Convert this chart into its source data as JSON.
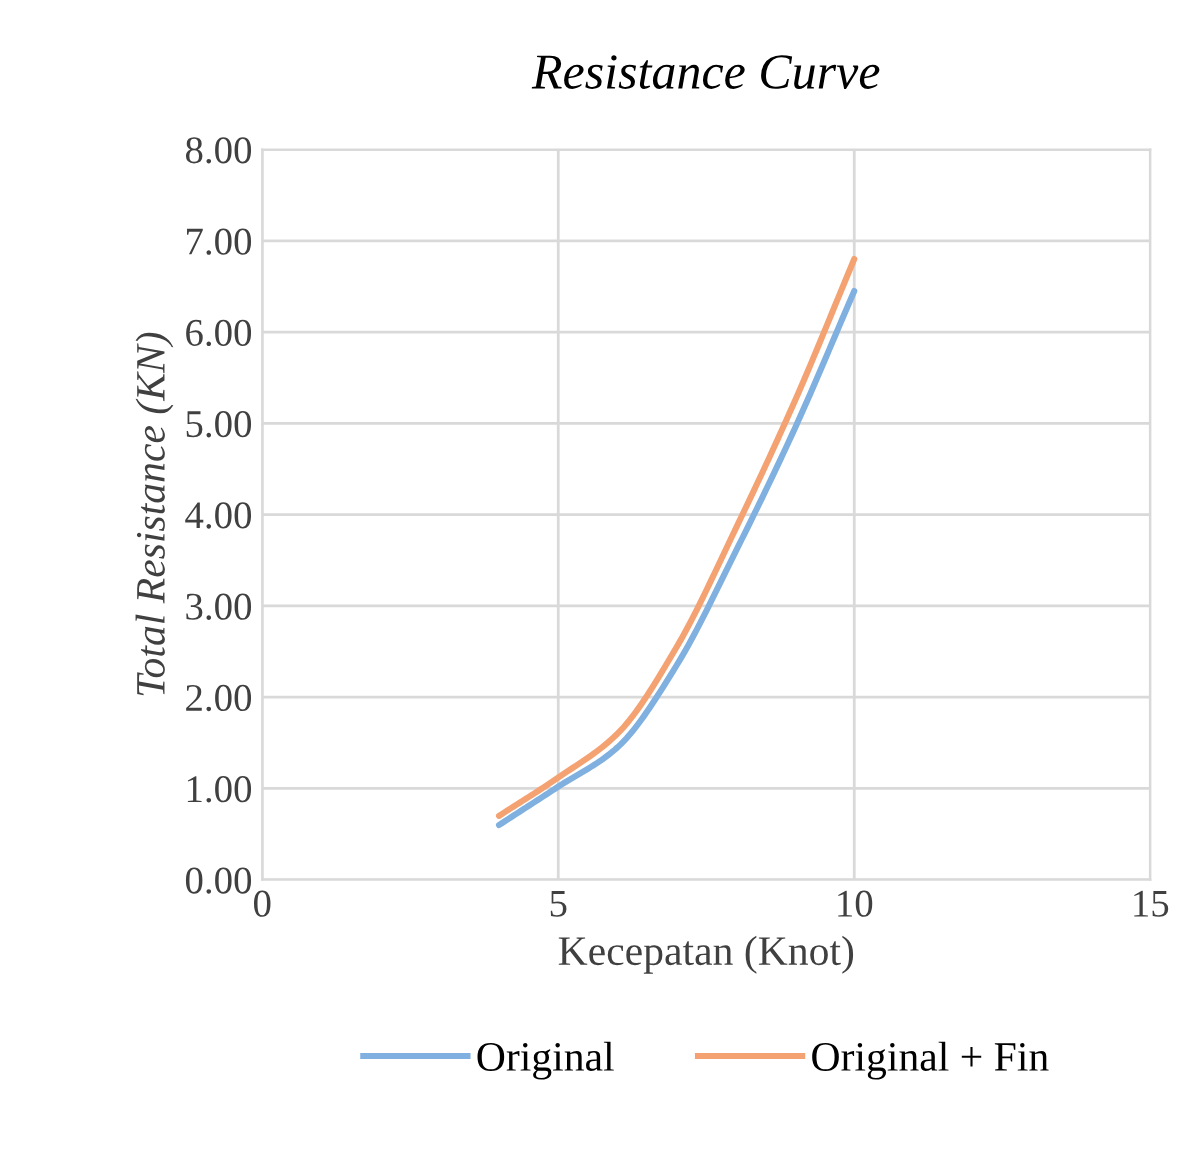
{
  "chart_data": {
    "type": "line",
    "title": "Resistance Curve",
    "xlabel": "Kecepatan (Knot)",
    "ylabel": "Total Resistance (KN)",
    "x": [
      4,
      5,
      6,
      7,
      8,
      9,
      10
    ],
    "series": [
      {
        "name": "Original",
        "color": "#7fb0e0",
        "values": [
          0.6,
          1.02,
          1.45,
          2.35,
          3.6,
          4.95,
          6.45
        ]
      },
      {
        "name": "Original + Fin",
        "color": "#f4a272",
        "values": [
          0.7,
          1.12,
          1.6,
          2.55,
          3.85,
          5.25,
          6.8
        ]
      }
    ],
    "xlim": [
      0,
      15
    ],
    "xticks": [
      0,
      5,
      10,
      15
    ],
    "ylim": [
      0,
      8
    ],
    "yticks": [
      {
        "value": 0,
        "label": "0.00"
      },
      {
        "value": 1,
        "label": "1.00"
      },
      {
        "value": 2,
        "label": "2.00"
      },
      {
        "value": 3,
        "label": "3.00"
      },
      {
        "value": 4,
        "label": "4.00"
      },
      {
        "value": 5,
        "label": "5.00"
      },
      {
        "value": 6,
        "label": "6.00"
      },
      {
        "value": 7,
        "label": "7.00"
      },
      {
        "value": 8,
        "label": "8.00"
      }
    ],
    "grid": true,
    "legend": "bottom",
    "marker": "none",
    "line_style": "solid"
  }
}
